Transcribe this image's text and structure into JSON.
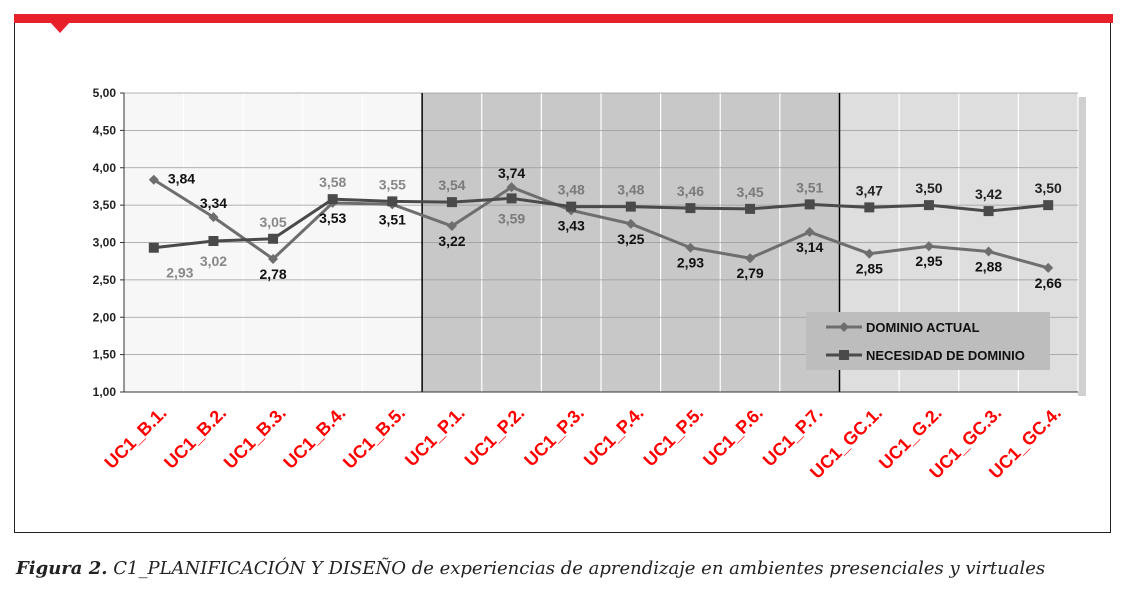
{
  "caption": {
    "label": "Figura 2.",
    "text": "C1_PLANIFICACIÓN Y DISEÑO de experiencias de aprendizaje en ambientes presenciales y virtuales"
  },
  "colors": {
    "accent": "#e8202a",
    "series_dominio": "#6e6e6e",
    "series_necesidad": "#4a4a4a",
    "tick_red": "#ff0000"
  },
  "chart_data": {
    "type": "line",
    "ylim": [
      1.0,
      5.0
    ],
    "yticks": [
      "1,00",
      "1,50",
      "2,00",
      "2,50",
      "3,00",
      "3,50",
      "4,00",
      "4,50",
      "5,00"
    ],
    "categories": [
      "UC1_B.1.",
      "UC1_B.2.",
      "UC1_B.3.",
      "UC1_B.4.",
      "UC1_B.5.",
      "UC1_P.1.",
      "UC1_P.2.",
      "UC1_P.3.",
      "UC1_P.4.",
      "UC1_P.5.",
      "UC1_P.6.",
      "UC1_P.7.",
      "UC1_GC.1.",
      "UC1_G.2.",
      "UC1_GC.3.",
      "UC1_GC.4."
    ],
    "series": [
      {
        "name": "DOMINIO ACTUAL",
        "marker": "diamond",
        "values": [
          3.84,
          3.34,
          2.78,
          3.53,
          3.51,
          3.22,
          3.74,
          3.43,
          3.25,
          2.93,
          2.79,
          3.14,
          2.85,
          2.95,
          2.88,
          2.66
        ],
        "labels": [
          "3,84",
          "3,34",
          "2,78",
          "3,53",
          "3,51",
          "3,22",
          "3,74",
          "3,43",
          "3,25",
          "2,93",
          "2,79",
          "3,14",
          "2,85",
          "2,95",
          "2,88",
          "2,66"
        ]
      },
      {
        "name": "NECESIDAD DE DOMINIO",
        "marker": "square",
        "values": [
          2.93,
          3.02,
          3.05,
          3.58,
          3.55,
          3.54,
          3.59,
          3.48,
          3.48,
          3.46,
          3.45,
          3.51,
          3.47,
          3.5,
          3.42,
          3.5
        ],
        "labels": [
          "2,93",
          "3,02",
          "3,05",
          "3,58",
          "3,55",
          "3,54",
          "3,59",
          "3,48",
          "3,48",
          "3,46",
          "3,45",
          "3,51",
          "3,47",
          "3,50",
          "3,42",
          "3,50"
        ]
      }
    ],
    "shaded_groups": [
      {
        "from_index": 5,
        "to_index": 11,
        "shade": "#c8c8c8"
      },
      {
        "from_index": 12,
        "to_index": 15,
        "shade": "#dedede"
      }
    ],
    "legend_position": "bottom-right",
    "grid": true
  }
}
